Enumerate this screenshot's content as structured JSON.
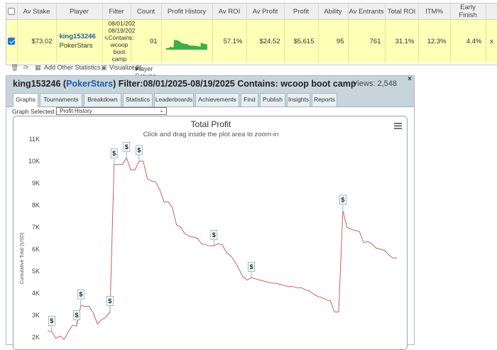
{
  "stats_table": {
    "headers": [
      "",
      "Av Stake",
      "Player",
      "Filter",
      "Count",
      "Profit History",
      "Av ROI",
      "Av Profit",
      "Profit",
      "Ability",
      "Av Entrants",
      "Total ROI",
      "ITM%",
      "Early Finish",
      ""
    ],
    "row": {
      "checked": true,
      "av_stake": "$73.02",
      "player_name": "king153246",
      "player_site": "PokerStars",
      "filter_lines": [
        "08/01/202",
        "08/19/202",
        "Contains:",
        "wcoop",
        "boot",
        "camp"
      ],
      "count": "91",
      "av_roi": "57.1%",
      "av_profit": "$24.52",
      "profit": "$5,615",
      "ability": "95",
      "av_entrants": "761",
      "total_roi": "31.1%",
      "itm": "12.3%",
      "early_finish": "4.4%",
      "remove": "x"
    },
    "sparkline_color": "#3fae49"
  },
  "toolbar": {
    "add_stats_label": "Add Other Statistics",
    "visualize_label": "Visualize",
    "player_groups_label": "Player Groups"
  },
  "graph_panel": {
    "player": "king153246",
    "site": "PokerStars",
    "filter_text": "Filter:08/01/2025-08/19/2025 Contains: wcoop boot camp",
    "views_label": "Views: 2,548",
    "close": "×",
    "tabs": [
      "Graphs",
      "Tournaments",
      "Breakdown",
      "Statistics",
      "Leaderboards",
      "Achievements",
      "Find",
      "Publish",
      "Insights",
      "Reports"
    ],
    "active_tab": "Graphs",
    "graph_selected_label": "Graph Selected:",
    "graph_selected_value": "Profit History"
  },
  "chart_data": {
    "type": "line",
    "title": "Total Profit",
    "subtitle": "Click and drag inside the plot area to zoom-in",
    "ylabel": "Cumulative Total (USD)",
    "xlabel": "",
    "yticks": [
      "2K",
      "3K",
      "4K",
      "5K",
      "6K",
      "7K",
      "8K",
      "9K",
      "10K",
      "11K"
    ],
    "ylim": [
      1800,
      11000
    ],
    "line_color": "#c9625f",
    "series": [
      {
        "values": [
          2300,
          2250,
          1950,
          2050,
          1900,
          2250,
          2550,
          2500,
          3450,
          3400,
          3400,
          3100,
          2600,
          2800,
          2900,
          3150,
          9850,
          9850,
          9850,
          10150,
          9600,
          9600,
          10000,
          10000,
          9200,
          9100,
          9050,
          8700,
          8150,
          8150,
          7900,
          7100,
          7000,
          6700,
          6600,
          6550,
          6500,
          6250,
          6200,
          6150,
          6150,
          6250,
          6200,
          5850,
          5700,
          5450,
          5100,
          4750,
          4600,
          4700,
          4650,
          4600,
          4550,
          4500,
          4450,
          4450,
          4400,
          4350,
          4300,
          4300,
          4250,
          4250,
          4150,
          4100,
          3950,
          3850,
          3800,
          3700,
          3650,
          3150,
          3150,
          7750,
          7000,
          6900,
          6850,
          6800,
          6300,
          6350,
          6250,
          6050,
          6000,
          5950,
          5750,
          5600,
          5600
        ]
      }
    ],
    "markers": [
      {
        "index": 1,
        "label": "$"
      },
      {
        "index": 7,
        "label": "$"
      },
      {
        "index": 8,
        "label": "$"
      },
      {
        "index": 15,
        "label": "$"
      },
      {
        "index": 16,
        "label": "$"
      },
      {
        "index": 19,
        "label": "$"
      },
      {
        "index": 22,
        "label": "$"
      },
      {
        "index": 40,
        "label": "$"
      },
      {
        "index": 49,
        "label": "$"
      },
      {
        "index": 71,
        "label": "$"
      }
    ],
    "grid": false,
    "legend": "none"
  }
}
